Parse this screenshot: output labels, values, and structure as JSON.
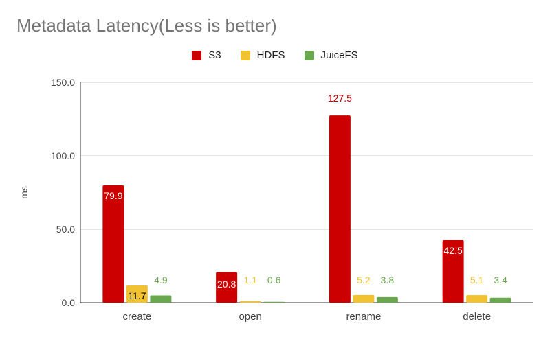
{
  "chart_data": {
    "type": "bar",
    "title": "Metadata Latency(Less is better)",
    "xlabel": "",
    "ylabel": "ms",
    "categories": [
      "create",
      "open",
      "rename",
      "delete"
    ],
    "series": [
      {
        "name": "S3",
        "values": [
          79.9,
          20.8,
          127.5,
          42.5
        ],
        "labels": [
          "79.9",
          "20.8",
          "127.5",
          "42.5"
        ],
        "color": "#cc0000"
      },
      {
        "name": "HDFS",
        "values": [
          11.7,
          1.1,
          5.2,
          5.1
        ],
        "labels": [
          "11.7",
          "1.1",
          "5.2",
          "5.1"
        ],
        "color": "#f1c232"
      },
      {
        "name": "JuiceFS",
        "values": [
          4.9,
          0.6,
          3.8,
          3.4
        ],
        "labels": [
          "4.9",
          "0.6",
          "3.8",
          "3.4"
        ],
        "color": "#6aa84f"
      }
    ],
    "ylim": [
      0,
      150
    ],
    "yticks": [
      "0.0",
      "50.0",
      "100.0",
      "150.0"
    ],
    "grid": true,
    "legend_position": "top-center"
  },
  "colors": {
    "title": "#757575",
    "axis_text": "#444444",
    "grid": "#cccccc",
    "axis_line": "#333333"
  }
}
